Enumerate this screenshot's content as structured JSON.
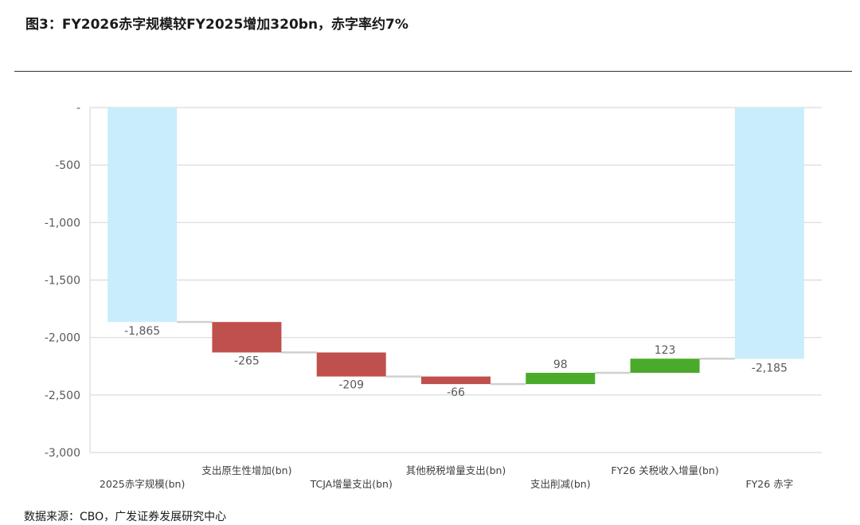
{
  "title": "图3：FY2026赤字规模较FY2025增加320bn，赤字率约7%",
  "source": "数据来源：CBO，广发证券发展研究中心",
  "colors": {
    "total": "#C9EDFC",
    "increase_deficit": "#C0504D",
    "reduce_deficit": "#4AAA2A",
    "grid": "#D9D9D9",
    "connector": "#D0D0D0",
    "axis_text": "#595959"
  },
  "chart_data": {
    "type": "bar",
    "subtype": "waterfall",
    "categories": [
      "2025赤字规模(bn)",
      "支出原生性增加(bn)",
      "TCJA增量支出(bn)",
      "其他税税增量支出(bn)",
      "支出削减(bn)",
      "FY26 关税收入增量(bn)",
      "FY26 赤字"
    ],
    "values": [
      -1865,
      -265,
      -209,
      -66,
      98,
      123,
      -2185
    ],
    "data_labels": [
      "-1,865",
      "-265",
      "-209",
      "-66",
      "98",
      "123",
      "-2,185"
    ],
    "kinds": [
      "total",
      "delta",
      "delta",
      "delta",
      "delta",
      "delta",
      "total"
    ],
    "y_ticks": [
      "-",
      "-500",
      "-1,000",
      "-1,500",
      "-2,000",
      "-2,500",
      "-3,000"
    ],
    "y_tick_values": [
      0,
      -500,
      -1000,
      -1500,
      -2000,
      -2500,
      -3000
    ],
    "ylim": [
      -3000,
      0
    ],
    "grid": true,
    "legend": "none"
  }
}
